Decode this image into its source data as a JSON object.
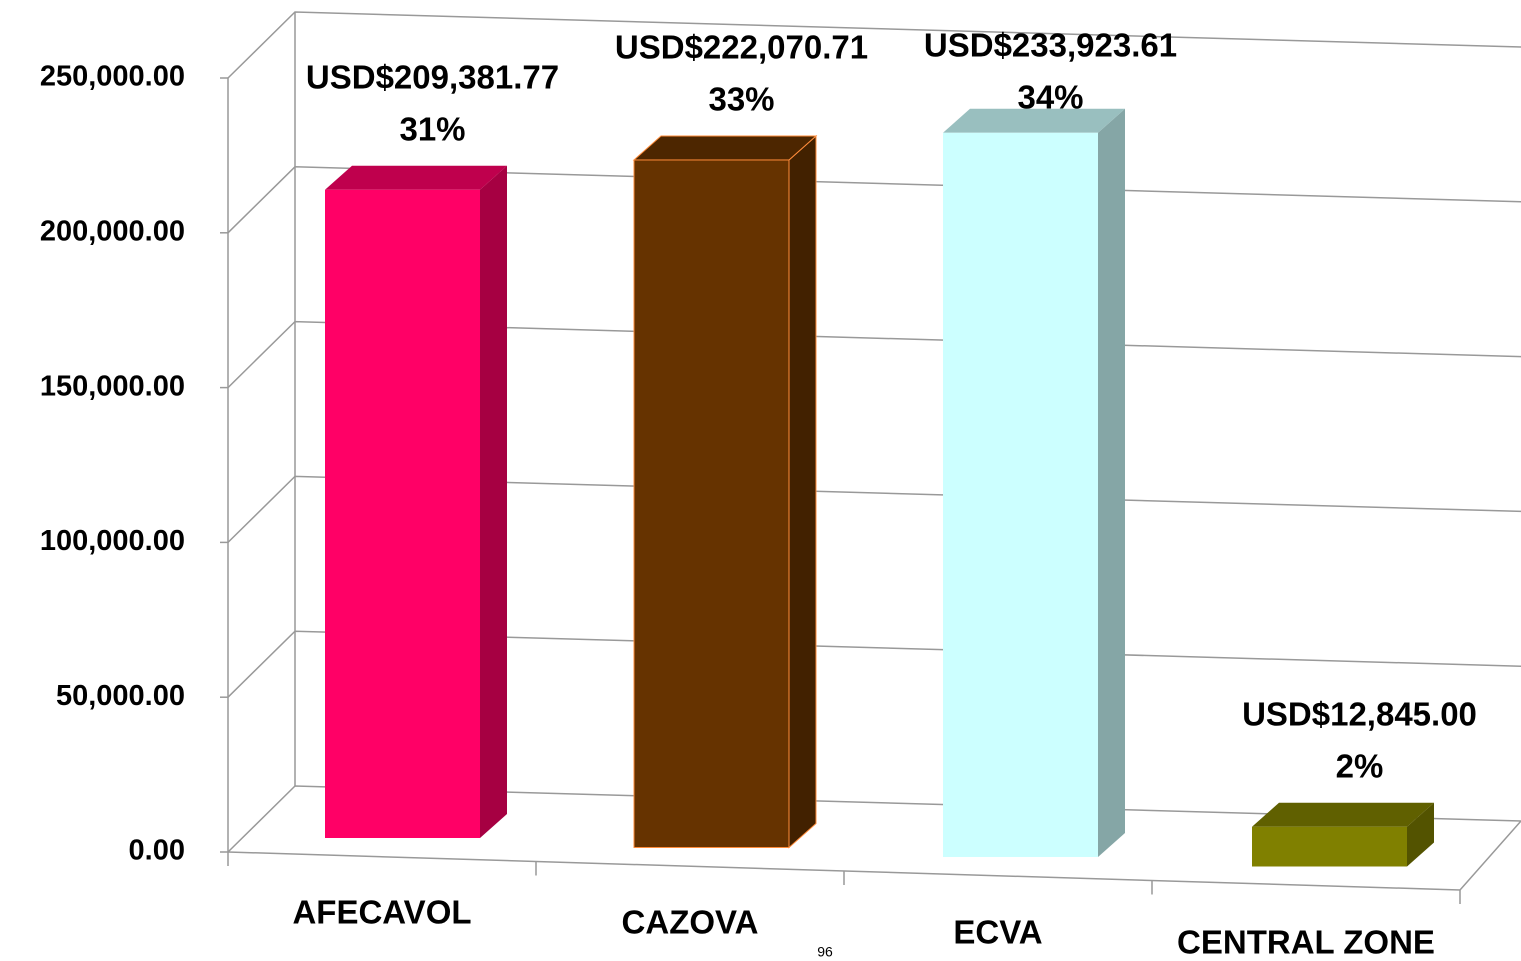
{
  "chart_data": {
    "type": "bar3d",
    "categories": [
      "AFECAVOL",
      "CAZOVA",
      "ECVA",
      "CENTRAL ZONE"
    ],
    "values": [
      209381.77,
      222070.71,
      233923.61,
      12845.0
    ],
    "value_labels": [
      "USD$209,381.77",
      "USD$222,070.71",
      "USD$233,923.61",
      "USD$12,845.00"
    ],
    "percent_labels": [
      "31%",
      "33%",
      "34%",
      "2%"
    ],
    "colors": [
      "#ff0066",
      "#663300",
      "#ccffff",
      "#808000"
    ],
    "ylim": [
      0,
      250000
    ],
    "yticks": [
      {
        "value": 0,
        "label": "0.00"
      },
      {
        "value": 50000,
        "label": "50,000.00"
      },
      {
        "value": 100000,
        "label": "100,000.00"
      },
      {
        "value": 150000,
        "label": "150,000.00"
      },
      {
        "value": 200000,
        "label": "200,000.00"
      },
      {
        "value": 250000,
        "label": "250,000.00"
      }
    ],
    "grid": true,
    "page_number": "96"
  }
}
